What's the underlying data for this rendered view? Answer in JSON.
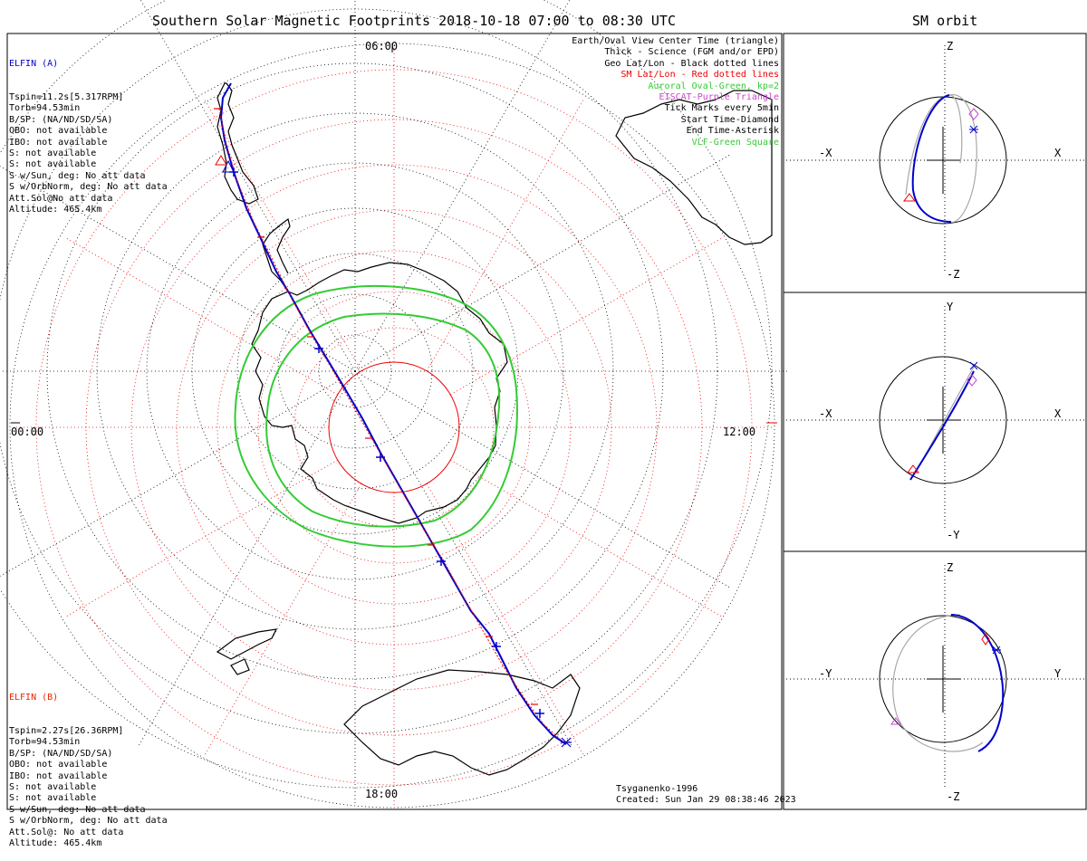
{
  "header": {
    "title": "Southern Solar Magnetic Footprints 2018-10-18 07:00 to 08:30 UTC",
    "orbit_title": "SM orbit"
  },
  "map": {
    "clock_labels": {
      "top": "06:00",
      "left": "00:00",
      "right": "12:00",
      "bottom": "18:00"
    }
  },
  "elfin_a": {
    "name": "ELFIN (A)",
    "name_color": "#0000cc",
    "lines": [
      "Tspin=11.2s[5.317RPM]",
      "Torb=94.53min",
      "B/SP: (NA/ND/SD/SA)",
      "OBO: not available",
      "IBO: not available",
      "S: not available",
      "S: not available",
      "S w/Sun, deg: No att data",
      "S w/OrbNorm, deg: No att data",
      "Att.Sol@No att data",
      "Altitude: 465.4km"
    ]
  },
  "elfin_b": {
    "name": "ELFIN (B)",
    "name_color": "#ee2200",
    "lines": [
      "Tspin=2.27s[26.36RPM]",
      "Torb=94.53min",
      "B/SP: (NA/ND/SD/SA)",
      "OBO: not available",
      "IBO: not available",
      "S: not available",
      "S: not available",
      "S w/Sun, deg: No att data",
      "S w/OrbNorm, deg: No att data",
      "Att.Sol@: No att data",
      "Altitude: 465.4km"
    ]
  },
  "legend": [
    {
      "text": "Earth/Oval View Center Time (triangle)",
      "color": "#000000"
    },
    {
      "text": "Thick - Science (FGM and/or EPD)",
      "color": "#000000"
    },
    {
      "text": "Geo Lat/Lon - Black dotted lines",
      "color": "#000000"
    },
    {
      "text": "SM Lat/Lon - Red dotted lines",
      "color": "#ee0000"
    },
    {
      "text": "Auroral Oval-Green, kp=2",
      "color": "#33cc33"
    },
    {
      "text": "EISCAT-Purple Triangle",
      "color": "#cc44cc"
    },
    {
      "text": "Tick Marks every 5min",
      "color": "#000000"
    },
    {
      "text": "Start Time-Diamond",
      "color": "#000000"
    },
    {
      "text": "End Time-Asterisk",
      "color": "#000000"
    },
    {
      "text": "VLF-Green Square",
      "color": "#33cc33"
    }
  ],
  "footer": {
    "model": "Tsyganenko-1996",
    "created": "Created: Sun Jan 29 08:38:46 2023"
  },
  "orbit_panels": [
    {
      "id": "xz",
      "top": "Z",
      "bottom": "-Z",
      "left": "-X",
      "right": "X"
    },
    {
      "id": "xy",
      "top": "Y",
      "bottom": "-Y",
      "left": "-X",
      "right": "X"
    },
    {
      "id": "yz",
      "top": "Z",
      "bottom": "-Z",
      "left": "-Y",
      "right": "Y"
    }
  ],
  "colors": {
    "track": "#0000cc",
    "sm_grid": "#ee0000",
    "oval": "#33cc33",
    "orbit_gray": "#a8a8a8"
  }
}
